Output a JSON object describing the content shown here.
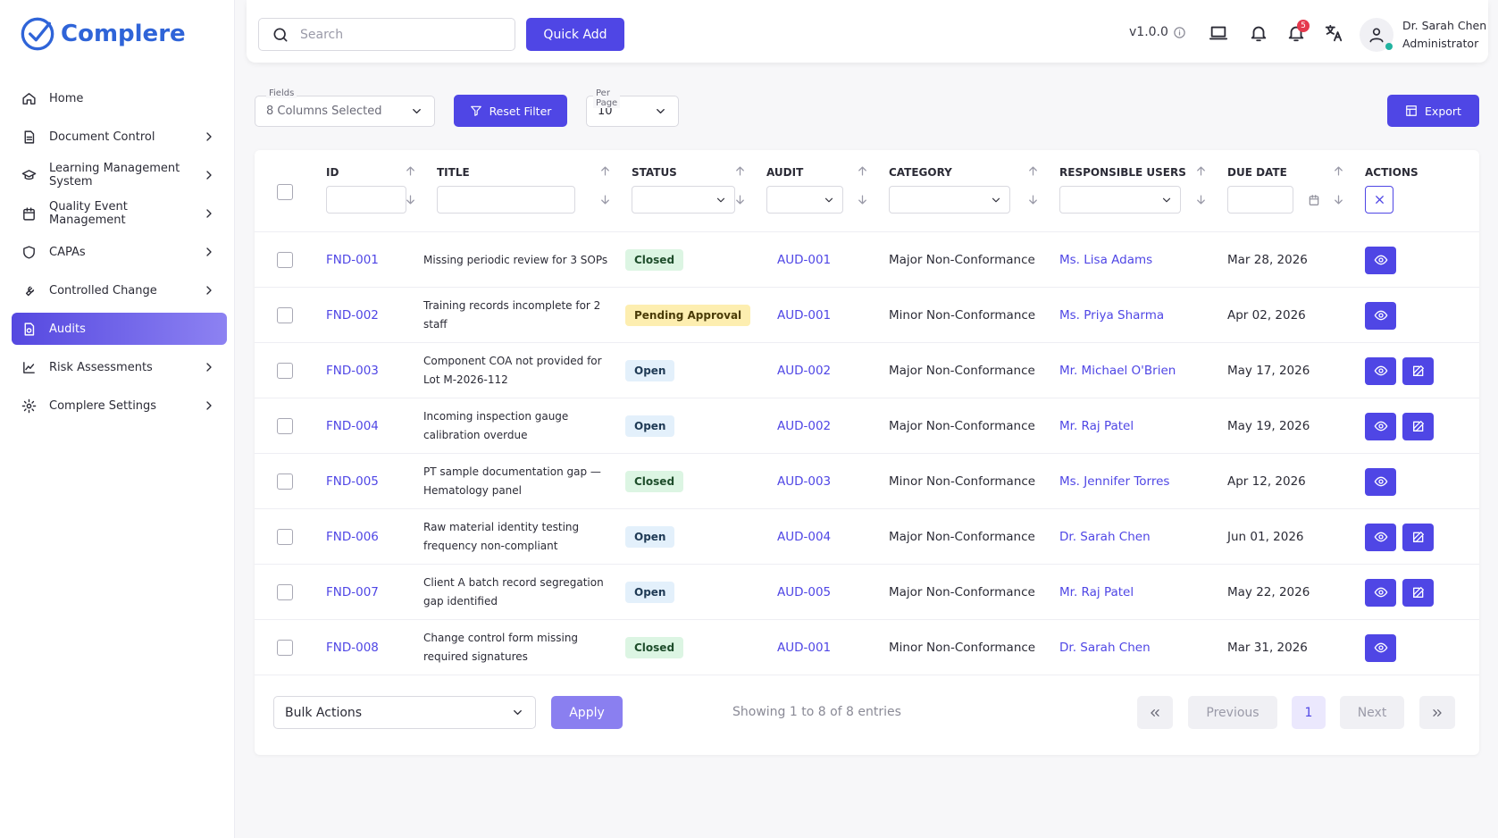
{
  "sidebar": {
    "brand": "Complere",
    "menu": [
      {
        "label": "Home",
        "expandable": false,
        "active": false
      },
      {
        "label": "Document Control",
        "expandable": true,
        "active": false
      },
      {
        "label": "Learning Management System",
        "expandable": true,
        "active": false
      },
      {
        "label": "Quality Event Management",
        "expandable": true,
        "active": false
      },
      {
        "label": "CAPAs",
        "expandable": true,
        "active": false
      },
      {
        "label": "Controlled Change",
        "expandable": true,
        "active": false
      },
      {
        "label": "Audits",
        "expandable": false,
        "active": true
      },
      {
        "label": "Risk Assessments",
        "expandable": true,
        "active": false
      },
      {
        "label": "Complere Settings",
        "expandable": true,
        "active": false
      }
    ]
  },
  "topbar": {
    "search_placeholder": "Search",
    "quick_add": "Quick Add",
    "version": "v1.0.0",
    "notification_count": 5,
    "user_name": "Dr. Sarah Chen",
    "user_role": "Administrator"
  },
  "filters": {
    "fields_label": "Fields",
    "fields_value": "8 Columns Selected",
    "reset": "Reset Filter",
    "per_page_label": "Per Page",
    "per_page_value": 10,
    "export": "Export"
  },
  "table": {
    "columns": [
      "ID",
      "TITLE",
      "STATUS",
      "AUDIT",
      "CATEGORY",
      "RESPONSIBLE USERS",
      "DUE DATE",
      "ACTIONS"
    ],
    "rows": [
      {
        "id": "FND-001",
        "title": "Missing periodic review for 3 SOPs",
        "status": "Closed",
        "audit": "AUD-001",
        "category": "Major Non-Conformance",
        "user": "Ms. Lisa Adams",
        "due": "Mar 28, 2026",
        "editable": false
      },
      {
        "id": "FND-002",
        "title": "Training records incomplete for 2 staff",
        "status": "Pending Approval",
        "audit": "AUD-001",
        "category": "Minor Non-Conformance",
        "user": "Ms. Priya Sharma",
        "due": "Apr 02, 2026",
        "editable": false
      },
      {
        "id": "FND-003",
        "title": "Component COA not provided for Lot M-2026-112",
        "status": "Open",
        "audit": "AUD-002",
        "category": "Major Non-Conformance",
        "user": "Mr. Michael O'Brien",
        "due": "May 17, 2026",
        "editable": true
      },
      {
        "id": "FND-004",
        "title": "Incoming inspection gauge calibration overdue",
        "status": "Open",
        "audit": "AUD-002",
        "category": "Major Non-Conformance",
        "user": "Mr. Raj Patel",
        "due": "May 19, 2026",
        "editable": true
      },
      {
        "id": "FND-005",
        "title": "PT sample documentation gap — Hematology panel",
        "status": "Closed",
        "audit": "AUD-003",
        "category": "Minor Non-Conformance",
        "user": "Ms. Jennifer Torres",
        "due": "Apr 12, 2026",
        "editable": false
      },
      {
        "id": "FND-006",
        "title": "Raw material identity testing frequency non-compliant",
        "status": "Open",
        "audit": "AUD-004",
        "category": "Major Non-Conformance",
        "user": "Dr. Sarah Chen",
        "due": "Jun 01, 2026",
        "editable": true
      },
      {
        "id": "FND-007",
        "title": "Client A batch record segregation gap identified",
        "status": "Open",
        "audit": "AUD-005",
        "category": "Major Non-Conformance",
        "user": "Mr. Raj Patel",
        "due": "May 22, 2026",
        "editable": true
      },
      {
        "id": "FND-008",
        "title": "Change control form missing required signatures",
        "status": "Closed",
        "audit": "AUD-001",
        "category": "Minor Non-Conformance",
        "user": "Dr. Sarah Chen",
        "due": "Mar 31, 2026",
        "editable": false
      }
    ]
  },
  "footer": {
    "bulk_actions": "Bulk Actions",
    "apply": "Apply",
    "showing": "Showing 1 to 8 of 8 entries",
    "previous": "Previous",
    "page": 1,
    "next": "Next"
  }
}
